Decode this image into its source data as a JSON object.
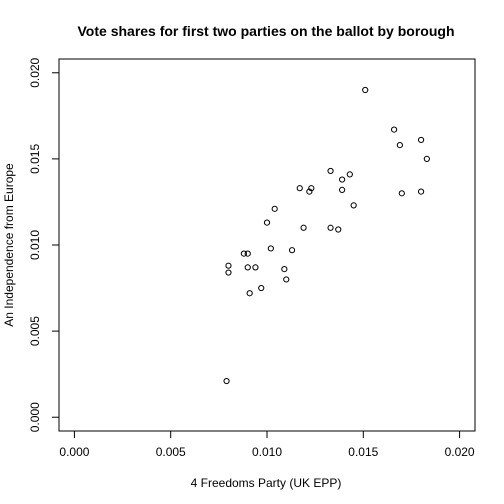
{
  "chart_data": {
    "type": "scatter",
    "title": "Vote shares for first two parties on the ballot by borough",
    "xlabel": "4 Freedoms Party (UK EPP)",
    "ylabel": "An Independence from Europe",
    "xlim": [
      -0.0008,
      0.0208
    ],
    "ylim": [
      -0.0008,
      0.0208
    ],
    "x_ticks": [
      0.0,
      0.005,
      0.01,
      0.015,
      0.02
    ],
    "x_tick_labels": [
      "0.000",
      "0.005",
      "0.010",
      "0.015",
      "0.020"
    ],
    "y_ticks": [
      0.0,
      0.005,
      0.01,
      0.015,
      0.02
    ],
    "y_tick_labels": [
      "0.000",
      "0.005",
      "0.010",
      "0.015",
      "0.020"
    ],
    "grid": false,
    "marker": "open-circle",
    "points": [
      {
        "x": 0.0079,
        "y": 0.0021
      },
      {
        "x": 0.008,
        "y": 0.0084
      },
      {
        "x": 0.008,
        "y": 0.0088
      },
      {
        "x": 0.0088,
        "y": 0.0095
      },
      {
        "x": 0.009,
        "y": 0.0095
      },
      {
        "x": 0.009,
        "y": 0.0087
      },
      {
        "x": 0.0091,
        "y": 0.0072
      },
      {
        "x": 0.0094,
        "y": 0.0087
      },
      {
        "x": 0.0097,
        "y": 0.0075
      },
      {
        "x": 0.01,
        "y": 0.0113
      },
      {
        "x": 0.0102,
        "y": 0.0098
      },
      {
        "x": 0.0104,
        "y": 0.0121
      },
      {
        "x": 0.0109,
        "y": 0.0086
      },
      {
        "x": 0.011,
        "y": 0.008
      },
      {
        "x": 0.0113,
        "y": 0.0097
      },
      {
        "x": 0.0117,
        "y": 0.0133
      },
      {
        "x": 0.0119,
        "y": 0.011
      },
      {
        "x": 0.0122,
        "y": 0.0131
      },
      {
        "x": 0.0123,
        "y": 0.0133
      },
      {
        "x": 0.0133,
        "y": 0.0143
      },
      {
        "x": 0.0133,
        "y": 0.011
      },
      {
        "x": 0.0137,
        "y": 0.0109
      },
      {
        "x": 0.0139,
        "y": 0.0138
      },
      {
        "x": 0.0139,
        "y": 0.0132
      },
      {
        "x": 0.0143,
        "y": 0.0141
      },
      {
        "x": 0.0145,
        "y": 0.0123
      },
      {
        "x": 0.0151,
        "y": 0.019
      },
      {
        "x": 0.0166,
        "y": 0.0167
      },
      {
        "x": 0.0169,
        "y": 0.0158
      },
      {
        "x": 0.017,
        "y": 0.013
      },
      {
        "x": 0.018,
        "y": 0.0161
      },
      {
        "x": 0.018,
        "y": 0.0131
      },
      {
        "x": 0.0183,
        "y": 0.015
      }
    ]
  }
}
